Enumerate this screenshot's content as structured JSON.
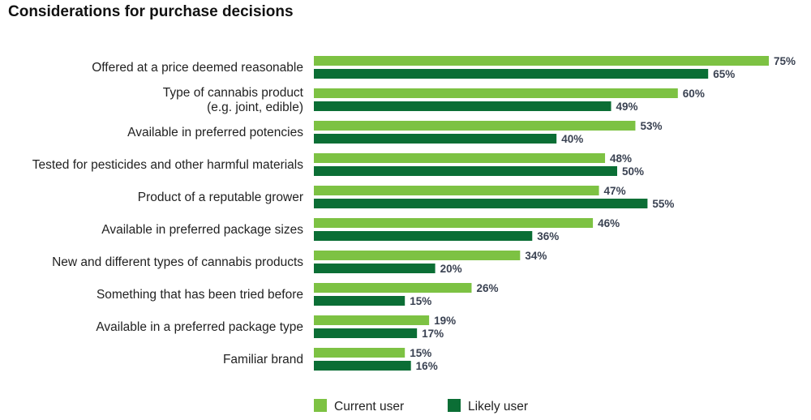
{
  "page": {
    "title": "Considerations for purchase decisions"
  },
  "chart_data": {
    "type": "bar",
    "orientation": "horizontal",
    "title": "Considerations for purchase decisions",
    "value_suffix": "%",
    "categories": [
      [
        "Offered at a price deemed reasonable"
      ],
      [
        "Type of cannabis product",
        "(e.g. joint, edible)"
      ],
      [
        "Available in preferred potencies"
      ],
      [
        "Tested for pesticides and other harmful materials"
      ],
      [
        "Product of a reputable grower"
      ],
      [
        "Available in preferred package sizes"
      ],
      [
        "New and different types of cannabis products"
      ],
      [
        "Something that has been tried before"
      ],
      [
        "Available in a preferred package type"
      ],
      [
        "Familiar brand"
      ]
    ],
    "series": [
      {
        "name": "Current user",
        "color": "#7dc243",
        "values": [
          75,
          60,
          53,
          48,
          47,
          46,
          34,
          26,
          19,
          15
        ]
      },
      {
        "name": "Likely user",
        "color": "#0b6e35",
        "values": [
          65,
          49,
          40,
          50,
          55,
          36,
          20,
          15,
          17,
          16
        ]
      }
    ],
    "xlim": [
      0,
      75
    ],
    "grid": false,
    "legend_position": "bottom"
  }
}
